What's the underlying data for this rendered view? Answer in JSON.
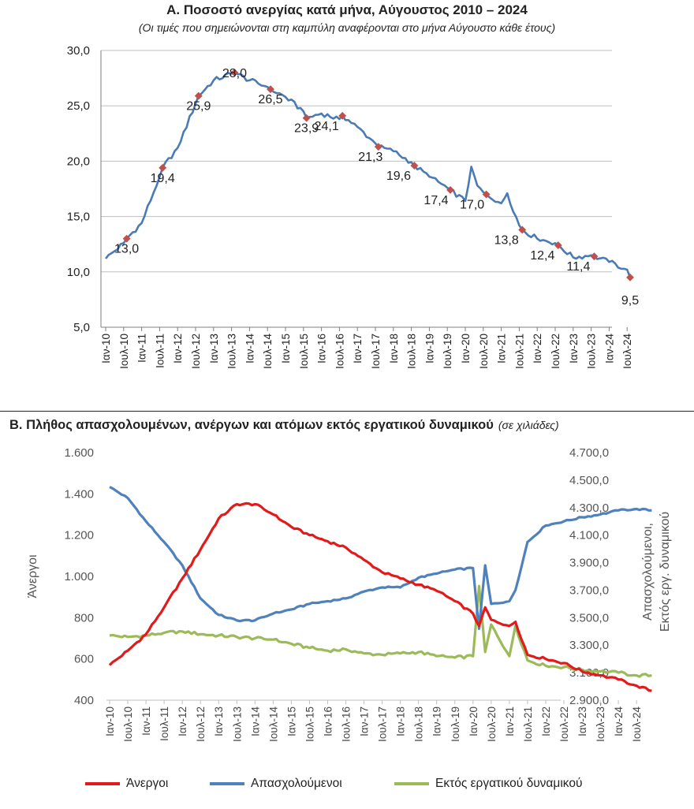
{
  "chart_a_title": "Α. Ποσοστό ανεργίας κατά μήνα, Αύγουστος 2010 – 2024",
  "chart_a_subtitle": "(Οι τιμές που σημειώνονται στη καμπύλη αναφέρονται στο μήνα Αύγουστο κάθε έτους)",
  "chart_b_title": "Β. Πλήθος απασχολουμένων, ανέργων και ατόμων εκτός εργατικού δυναμικού",
  "chart_b_unit": "(σε χιλιάδες)",
  "colors": {
    "unemployment": "#4a7bb5",
    "marker": "#c0504d",
    "unemployed": "#e31a1c",
    "employed": "#4f81bd",
    "inactive": "#9bbb59"
  },
  "chart_data": [
    {
      "type": "line",
      "title": "Α. Ποσοστό ανεργίας κατά μήνα, Αύγουστος 2010 – 2024",
      "subtitle": "(Οι τιμές που σημειώνονται στη καμπύλη αναφέρονται στο μήνα Αύγουστο κάθε έτους)",
      "xlabel": "",
      "ylabel": "",
      "ylim": [
        5,
        30
      ],
      "yticks": [
        "5,0",
        "10,0",
        "15,0",
        "20,0",
        "25,0",
        "30,0"
      ],
      "x_tick_labels": [
        "Ιαν-10",
        "Ιουλ-10",
        "Ιαν-11",
        "Ιουλ-11",
        "Ιαν-12",
        "Ιουλ-12",
        "Ιαν-13",
        "Ιουλ-13",
        "Ιαν-14",
        "Ιουλ-14",
        "Ιαν-15",
        "Ιουλ-15",
        "Ιαν-16",
        "Ιουλ-16",
        "Ιαν-17",
        "Ιουλ-17",
        "Ιαν-18",
        "Ιουλ-18",
        "Ιαν-19",
        "Ιουλ-19",
        "Ιαν-20",
        "Ιουλ-20",
        "Ιαν-21",
        "Ιουλ-21",
        "Ιαν-22",
        "Ιουλ-22",
        "Ιαν-23",
        "Ιουλ-23",
        "Ιαν-24",
        "Ιουλ-24"
      ],
      "grid": true,
      "series": [
        {
          "x": [
            "Ιαν-10",
            "Ιουλ-10",
            "Αυγ-10",
            "Ιαν-11",
            "Ιουλ-11",
            "Αυγ-11",
            "Ιαν-12",
            "Ιουλ-12",
            "Αυγ-12",
            "Ιαν-13",
            "Ιουλ-13",
            "Αυγ-13",
            "Ιαν-14",
            "Ιουλ-14",
            "Αυγ-14",
            "Ιαν-15",
            "Ιουλ-15",
            "Αυγ-15",
            "Ιαν-16",
            "Ιουλ-16",
            "Αυγ-16",
            "Ιαν-17",
            "Ιουλ-17",
            "Αυγ-17",
            "Ιαν-18",
            "Ιουλ-18",
            "Αυγ-18",
            "Ιαν-19",
            "Ιουλ-19",
            "Αυγ-19",
            "Ιαν-20",
            "Μαρ-20",
            "Μαϊ-20",
            "Ιουλ-20",
            "Αυγ-20",
            "Ιαν-21",
            "Μαρ-21",
            "Ιουλ-21",
            "Αυγ-21",
            "Ιαν-22",
            "Ιουλ-22",
            "Αυγ-22",
            "Ιαν-23",
            "Ιουλ-23",
            "Αυγ-23",
            "Ιαν-24",
            "Ιουλ-24",
            "Αυγ-24"
          ],
          "values": [
            11.2,
            12.6,
            13.0,
            14.4,
            18.6,
            19.4,
            21.2,
            25.2,
            25.9,
            27.3,
            27.9,
            28.0,
            27.3,
            26.7,
            26.5,
            25.8,
            24.5,
            23.9,
            24.3,
            23.8,
            24.1,
            23.1,
            21.6,
            21.3,
            20.9,
            19.9,
            19.6,
            18.6,
            17.6,
            17.4,
            16.4,
            19.5,
            17.8,
            17.2,
            17.0,
            16.2,
            17.1,
            14.2,
            13.8,
            13.0,
            12.6,
            12.4,
            11.3,
            11.5,
            11.4,
            10.9,
            10.2,
            9.5
          ]
        }
      ],
      "august_labels": [
        {
          "x": "Αυγ-10",
          "value": 13.0,
          "label": "13,0"
        },
        {
          "x": "Αυγ-11",
          "value": 19.4,
          "label": "19,4"
        },
        {
          "x": "Αυγ-12",
          "value": 25.9,
          "label": "25,9"
        },
        {
          "x": "Αυγ-13",
          "value": 28.0,
          "label": "28,0"
        },
        {
          "x": "Αυγ-14",
          "value": 26.5,
          "label": "26,5"
        },
        {
          "x": "Αυγ-15",
          "value": 23.9,
          "label": "23,9"
        },
        {
          "x": "Αυγ-16",
          "value": 24.1,
          "label": "24,1"
        },
        {
          "x": "Αυγ-17",
          "value": 21.3,
          "label": "21,3"
        },
        {
          "x": "Αυγ-18",
          "value": 19.6,
          "label": "19,6"
        },
        {
          "x": "Αυγ-19",
          "value": 17.4,
          "label": "17,4"
        },
        {
          "x": "Αυγ-20",
          "value": 17.0,
          "label": "17,0"
        },
        {
          "x": "Αυγ-21",
          "value": 13.8,
          "label": "13,8"
        },
        {
          "x": "Αυγ-22",
          "value": 12.4,
          "label": "12,4"
        },
        {
          "x": "Αυγ-23",
          "value": 11.4,
          "label": "11,4"
        },
        {
          "x": "Αυγ-24",
          "value": 9.5,
          "label": "9,5"
        }
      ]
    },
    {
      "type": "line",
      "title": "Β. Πλήθος απασχολουμένων, ανέργων και ατόμων εκτός εργατικού δυναμικού",
      "unit": "(σε χιλιάδες)",
      "ylabel": "Άνεργοι",
      "y2label": [
        "Απασχολούμενοι,",
        "Εκτός εργ. δυναμικού"
      ],
      "ylim": [
        400,
        1600
      ],
      "y2lim": [
        2900,
        4700
      ],
      "yticks": [
        "400",
        "600",
        "800",
        "1.000",
        "1.200",
        "1.400",
        "1.600"
      ],
      "y2ticks": [
        "2.900,0",
        "3.100,0",
        "3.300,0",
        "3.500,0",
        "3.700,0",
        "3.900,0",
        "4.100,0",
        "4.300,0",
        "4.500,0",
        "4.700,0"
      ],
      "x_tick_labels": [
        "Ιαν-10",
        "Ιουλ-10",
        "Ιαν-11",
        "Ιουλ-11",
        "Ιαν-12",
        "Ιουλ-12",
        "Ιαν-13",
        "Ιουλ-13",
        "Ιαν-14",
        "Ιουλ-14",
        "Ιαν-15",
        "Ιουλ-15",
        "Ιαν-16",
        "Ιουλ-16",
        "Ιαν-17",
        "Ιουλ-17",
        "Ιαν-18",
        "Ιουλ-18",
        "Ιαν-19",
        "Ιουλ-19",
        "Ιαν-20",
        "Ιουλ-20",
        "Ιαν-21",
        "Ιουλ-21",
        "Ιαν-22",
        "Ιουλ-22",
        "Ιαν-23",
        "Ιουλ-23",
        "Ιαν-24",
        "Ιουλ-24"
      ],
      "legend_position": "bottom",
      "series": [
        {
          "name": "Άνεργοι",
          "axis": "left",
          "x": [
            "Ιαν-10",
            "Ιουλ-10",
            "Ιαν-11",
            "Ιουλ-11",
            "Ιαν-12",
            "Ιουλ-12",
            "Ιαν-13",
            "Ιουλ-13",
            "Ιαν-14",
            "Ιουλ-14",
            "Ιαν-15",
            "Ιουλ-15",
            "Ιαν-16",
            "Ιουλ-16",
            "Ιαν-17",
            "Ιουλ-17",
            "Ιαν-18",
            "Ιουλ-18",
            "Ιαν-19",
            "Ιουλ-19",
            "Ιαν-20",
            "Μαρ-20",
            "Μαϊ-20",
            "Ιουλ-20",
            "Ιαν-21",
            "Μαρ-21",
            "Ιουλ-21",
            "Ιαν-22",
            "Ιουλ-22",
            "Ιαν-23",
            "Ιουλ-23",
            "Ιαν-24",
            "Ιουλ-24",
            "Δεκ-24"
          ],
          "values": [
            570,
            640,
            720,
            850,
            990,
            1130,
            1280,
            1350,
            1350,
            1300,
            1240,
            1200,
            1170,
            1140,
            1080,
            1020,
            990,
            960,
            930,
            880,
            820,
            760,
            850,
            790,
            760,
            780,
            620,
            600,
            580,
            540,
            520,
            500,
            470,
            445
          ]
        },
        {
          "name": "Απασχολούμενοι",
          "axis": "right",
          "x": [
            "Ιαν-10",
            "Ιουλ-10",
            "Ιαν-11",
            "Ιουλ-11",
            "Ιαν-12",
            "Ιουλ-12",
            "Ιαν-13",
            "Ιουλ-13",
            "Ιαν-14",
            "Ιουλ-14",
            "Ιαν-15",
            "Ιουλ-15",
            "Ιαν-16",
            "Ιουλ-16",
            "Ιαν-17",
            "Ιουλ-17",
            "Ιαν-18",
            "Ιουλ-18",
            "Ιαν-19",
            "Ιουλ-19",
            "Ιαν-20",
            "Μαρ-20",
            "Μαϊ-20",
            "Ιουλ-20",
            "Ιαν-21",
            "Μαρ-21",
            "Ιουλ-21",
            "Ιαν-22",
            "Ιουλ-22",
            "Ιαν-23",
            "Ιουλ-23",
            "Ιαν-24",
            "Ιουλ-24",
            "Δεκ-24"
          ],
          "values": [
            4450,
            4370,
            4200,
            4050,
            3880,
            3640,
            3520,
            3480,
            3480,
            3530,
            3560,
            3600,
            3620,
            3640,
            3690,
            3720,
            3720,
            3790,
            3820,
            3850,
            3860,
            3420,
            3880,
            3600,
            3620,
            3700,
            4050,
            4170,
            4200,
            4230,
            4250,
            4280,
            4290,
            4280
          ]
        },
        {
          "name": "Εκτός εργατικού δυναμικού",
          "axis": "right",
          "x": [
            "Ιαν-10",
            "Ιουλ-10",
            "Ιαν-11",
            "Ιουλ-11",
            "Ιαν-12",
            "Ιουλ-12",
            "Ιαν-13",
            "Ιουλ-13",
            "Ιαν-14",
            "Ιουλ-14",
            "Ιαν-15",
            "Ιουλ-15",
            "Ιαν-16",
            "Ιουλ-16",
            "Ιαν-17",
            "Ιουλ-17",
            "Ιαν-18",
            "Ιουλ-18",
            "Ιαν-19",
            "Ιουλ-19",
            "Ιαν-20",
            "Μαρ-20",
            "Μαϊ-20",
            "Ιουλ-20",
            "Ιαν-21",
            "Μαρ-21",
            "Ιουλ-21",
            "Ιαν-22",
            "Ιουλ-22",
            "Ιαν-23",
            "Ιουλ-23",
            "Ιαν-24",
            "Ιουλ-24",
            "Δεκ-24"
          ],
          "values": [
            3370,
            3360,
            3370,
            3390,
            3400,
            3380,
            3370,
            3360,
            3350,
            3340,
            3310,
            3280,
            3260,
            3270,
            3240,
            3230,
            3240,
            3250,
            3220,
            3210,
            3220,
            3730,
            3250,
            3450,
            3220,
            3440,
            3190,
            3150,
            3140,
            3120,
            3110,
            3100,
            3080,
            3080
          ]
        }
      ]
    }
  ]
}
